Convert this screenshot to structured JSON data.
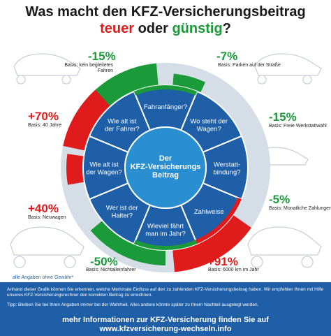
{
  "title": {
    "line1": "Was macht den KFZ-Versicherungsbeitrag",
    "word_expensive": "teuer",
    "word_or": "oder",
    "word_cheap": "günstig",
    "qmark": "?"
  },
  "colors": {
    "accent_blue": "#1f5fa8",
    "center_blue": "#2a8fd0",
    "red": "#e01b1b",
    "green": "#1b9a3a",
    "ring_gray": "#d5dde6"
  },
  "segments": [
    {
      "label_lines": [
        "Fahranfänger?"
      ]
    },
    {
      "label_lines": [
        "Wo steht der",
        "Wagen?"
      ]
    },
    {
      "label_lines": [
        "Werstatt-",
        "bindung?"
      ]
    },
    {
      "label_lines": [
        "Zahlweise"
      ]
    },
    {
      "label_lines": [
        "Wieviel fährt",
        "man im Jahr?"
      ]
    },
    {
      "label_lines": [
        "Wer ist der",
        "Halter?"
      ]
    },
    {
      "label_lines": [
        "Wie alt ist",
        "der Wagen?"
      ]
    },
    {
      "label_lines": [
        "Wie alt ist",
        "der Fahrer?"
      ]
    }
  ],
  "center": {
    "line1": "Der",
    "line2": "KFZ-Versicherungs",
    "line3": "Beitrag"
  },
  "factors": {
    "fahranfaenger": {
      "pct": "-15%",
      "basis": "Basis: kein begleitetes Fahren"
    },
    "standort": {
      "pct": "-7%",
      "basis": "Basis: Parken auf der Straße"
    },
    "werkstatt": {
      "pct": "-15%",
      "basis": "Basis: Freie Werkstattwahl"
    },
    "zahlweise": {
      "pct": "-5%",
      "basis": "Basis: Monatliche Zahlungen"
    },
    "fahrleistung": {
      "pct": "+91%",
      "basis": "Basis: 6000 km im Jahr"
    },
    "halter": {
      "pct": "-50%",
      "basis": "Basis: Nichtalleinfahrer"
    },
    "wagenalter": {
      "pct": "+40%",
      "basis": "Basis: Neuwagen"
    },
    "fahreralter": {
      "pct": "+70%",
      "basis": "Basis: 40 Jahre"
    }
  },
  "disclaimer": "alle Angaben ohne Gewähr*",
  "footer": {
    "p1": "Anhand dieser Grafik können Sie erkennen, welche Merkmale Einfluss auf den zu zahlenden KFZ-Versicherungsbeitrag haben. Wir empfehlen Ihnen mit Hilfe unseres KFZ-Versicherungsrechner den korrekten Beitrag zu errechnen.",
    "p2": "Tipp: Bleiben Sie bei Ihren Angaben immer bei der Wahrheit. Alles andere könnte später zu Ihrem Nachteil ausgelegt werden.",
    "cta1": "mehr Informationen zur KFZ-Versicherung finden Sie auf",
    "cta2": "www.kfzversicherung-wechseln.info"
  }
}
